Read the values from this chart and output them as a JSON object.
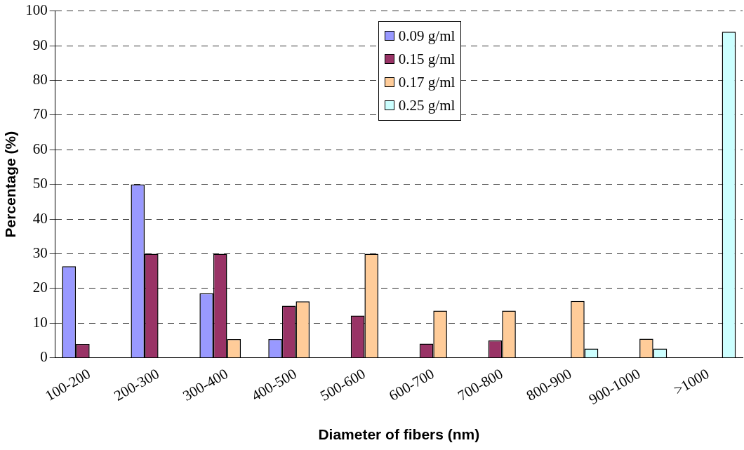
{
  "chart_data": {
    "type": "bar",
    "xlabel": "Diameter of fibers (nm)",
    "ylabel": "Percentage (%)",
    "categories": [
      "100-200",
      "200-300",
      "300-400",
      "400-500",
      "500-600",
      "600-700",
      "700-800",
      "800-900",
      "900-1000",
      ">1000"
    ],
    "series": [
      {
        "name": "0.09 g/ml",
        "color": "#9999ff",
        "values": [
          26.4,
          50,
          18.6,
          5.4,
          null,
          null,
          null,
          null,
          null,
          null
        ]
      },
      {
        "name": "0.15 g/ml",
        "color": "#993366",
        "values": [
          4,
          30,
          30,
          15,
          12.2,
          4.1,
          5,
          null,
          null,
          null
        ]
      },
      {
        "name": "0.17 g/ml",
        "color": "#ffcc99",
        "values": [
          null,
          null,
          5.4,
          16.3,
          30,
          13.6,
          13.6,
          16.4,
          5.5,
          null
        ]
      },
      {
        "name": "0.25 g/ml",
        "color": "#ccffff",
        "values": [
          null,
          null,
          null,
          null,
          null,
          null,
          null,
          2.7,
          2.7,
          94
        ]
      }
    ],
    "ylim": [
      0,
      100
    ],
    "yticks": [
      0,
      10,
      20,
      30,
      40,
      50,
      60,
      70,
      80,
      90,
      100
    ],
    "grid": "y",
    "legend": "top"
  }
}
